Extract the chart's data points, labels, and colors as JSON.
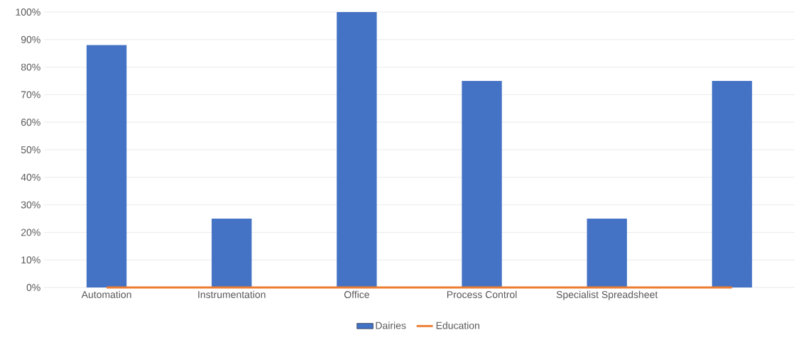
{
  "chart_data": {
    "type": "bar",
    "categories": [
      "Automation",
      "Instrumentation",
      "Office",
      "Process Control",
      "Specialist Spreadsheet",
      null
    ],
    "series": [
      {
        "name": "Dairies",
        "color": "#4472c4",
        "values": [
          88,
          25,
          100,
          75,
          25,
          75
        ]
      },
      {
        "name": "Education",
        "type": "line",
        "color": "#ed7d31",
        "values": [
          0,
          0,
          0,
          0,
          0,
          0
        ]
      }
    ],
    "ylim": [
      0,
      100
    ],
    "yticks": [
      {
        "value": 0,
        "label": "0%"
      },
      {
        "value": 10,
        "label": "10%"
      },
      {
        "value": 20,
        "label": "20%"
      },
      {
        "value": 30,
        "label": "30%"
      },
      {
        "value": 40,
        "label": "40%"
      },
      {
        "value": 50,
        "label": "50%"
      },
      {
        "value": 60,
        "label": "60%"
      },
      {
        "value": 70,
        "label": "70%"
      },
      {
        "value": 80,
        "label": "80%"
      },
      {
        "value": 90,
        "label": "90%"
      },
      {
        "value": 100,
        "label": "100%"
      }
    ],
    "grid": "y",
    "legend": "bottom"
  }
}
